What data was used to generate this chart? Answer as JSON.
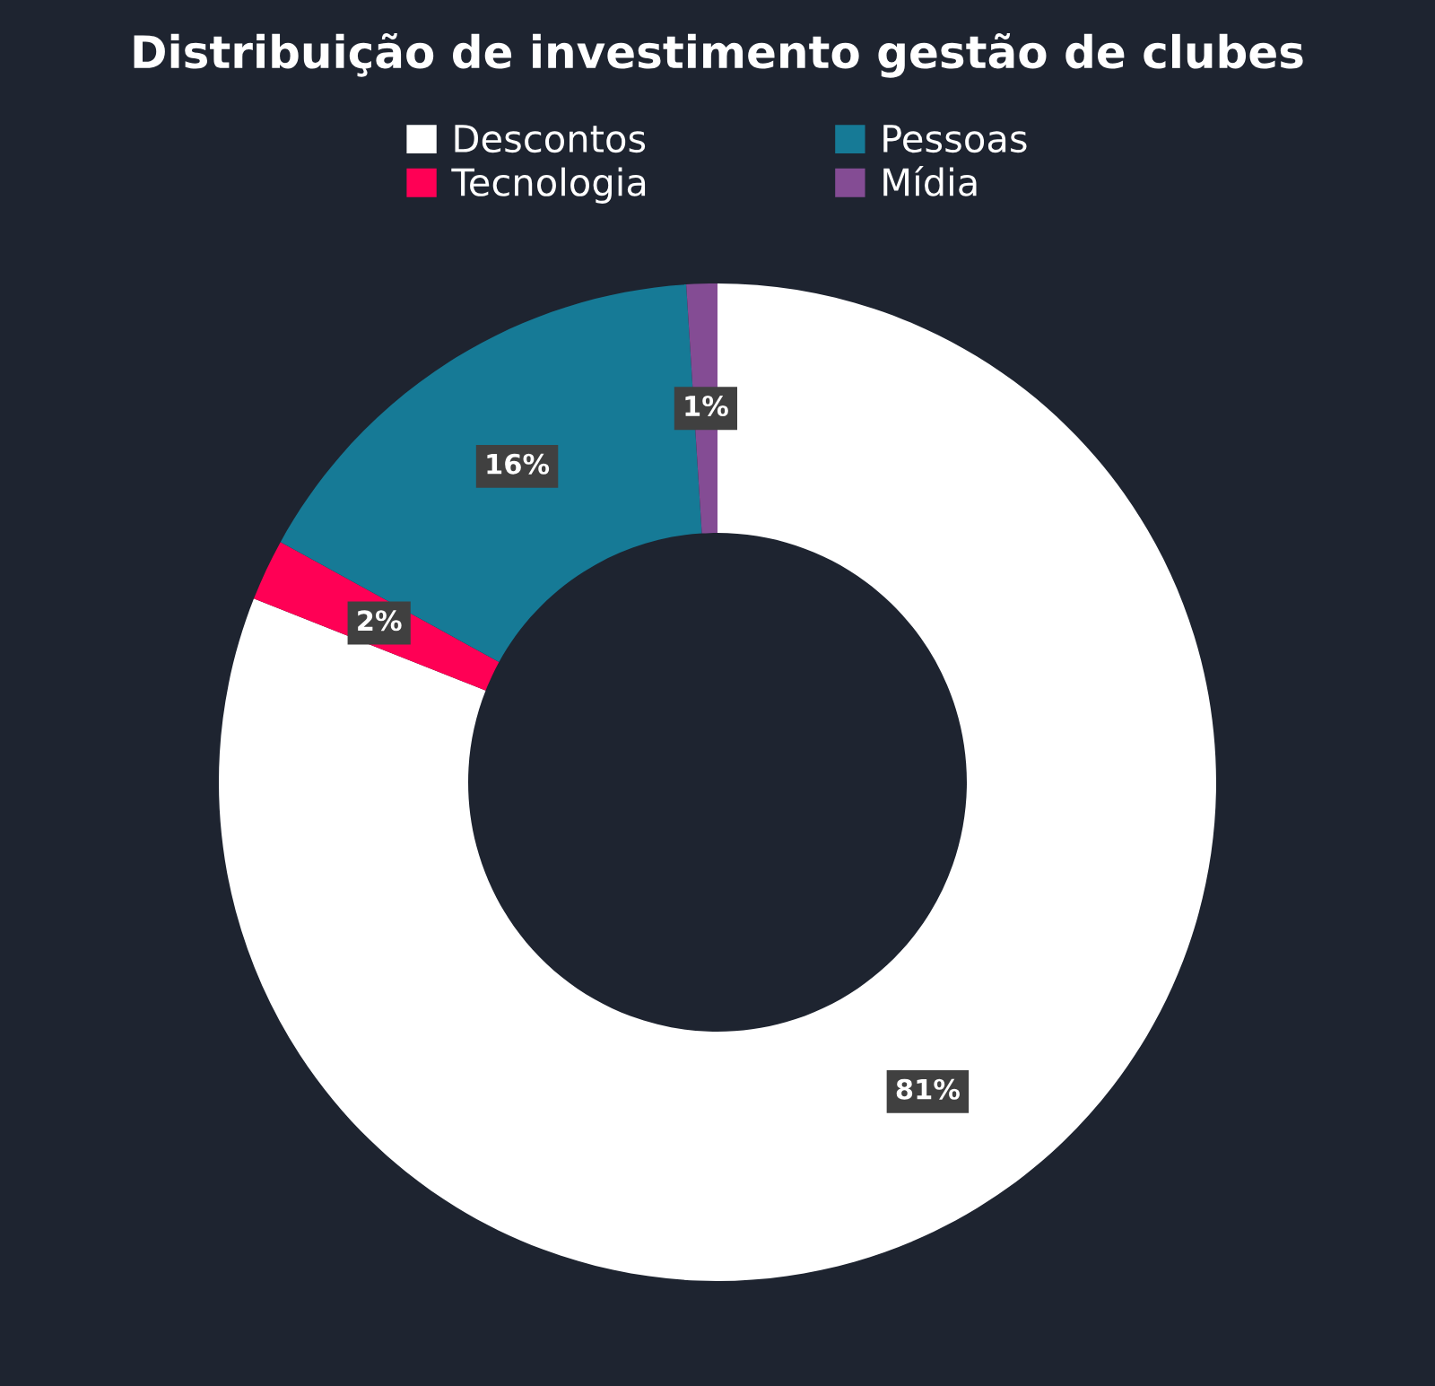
{
  "chart_data": {
    "type": "donut",
    "title": "Distribuição de investimento gestão de clubes",
    "categories": [
      "Descontos",
      "Tecnologia",
      "Pessoas",
      "Mídia"
    ],
    "values": [
      81,
      2,
      16,
      1
    ],
    "colors": [
      "#ffffff",
      "#ff0055",
      "#167a96",
      "#844c94"
    ],
    "value_labels": [
      "81%",
      "2%",
      "16%",
      "1%"
    ],
    "legend": "top"
  }
}
